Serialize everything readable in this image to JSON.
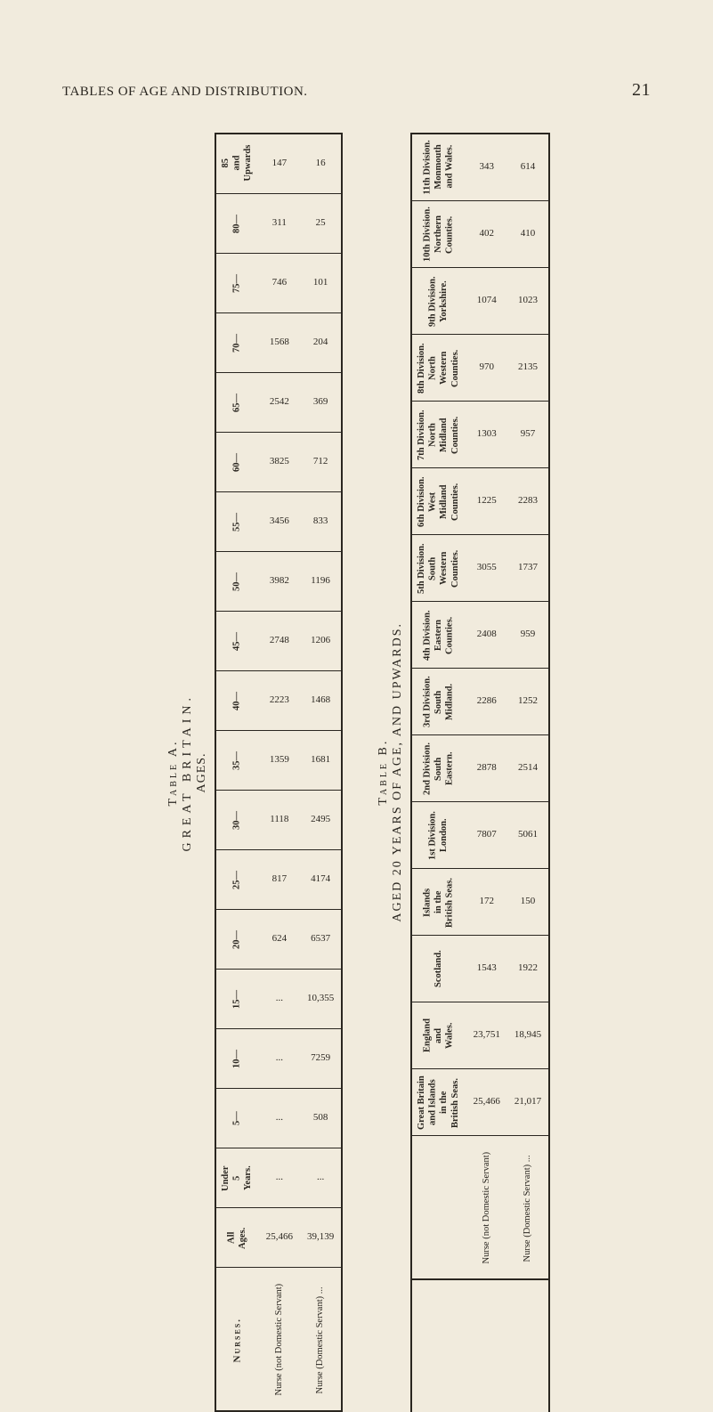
{
  "header": {
    "title": "TABLES OF AGE AND DISTRIBUTION.",
    "page": "21"
  },
  "tableA": {
    "caption": {
      "label": "Table A.",
      "title": "GREAT BRITAIN.",
      "sub": "AGES."
    },
    "stub": "Nurses.",
    "series": [
      "Nurse (not Domestic Servant)",
      "Nurse (Domestic Servant) ..."
    ],
    "rows": [
      {
        "label": "85\nand\nUpwards",
        "vals": [
          "147",
          "16"
        ]
      },
      {
        "label": "80—",
        "vals": [
          "311",
          "25"
        ]
      },
      {
        "label": "75—",
        "vals": [
          "746",
          "101"
        ]
      },
      {
        "label": "70—",
        "vals": [
          "1568",
          "204"
        ]
      },
      {
        "label": "65—",
        "vals": [
          "2542",
          "369"
        ]
      },
      {
        "label": "60—",
        "vals": [
          "3825",
          "712"
        ]
      },
      {
        "label": "55—",
        "vals": [
          "3456",
          "833"
        ]
      },
      {
        "label": "50—",
        "vals": [
          "3982",
          "1196"
        ]
      },
      {
        "label": "45—",
        "vals": [
          "2748",
          "1206"
        ]
      },
      {
        "label": "40—",
        "vals": [
          "2223",
          "1468"
        ]
      },
      {
        "label": "35—",
        "vals": [
          "1359",
          "1681"
        ]
      },
      {
        "label": "30—",
        "vals": [
          "1118",
          "2495"
        ]
      },
      {
        "label": "25—",
        "vals": [
          "817",
          "4174"
        ]
      },
      {
        "label": "20—",
        "vals": [
          "624",
          "6537"
        ]
      },
      {
        "label": "15—",
        "vals": [
          "...",
          "10,355"
        ]
      },
      {
        "label": "10—",
        "vals": [
          "...",
          "7259"
        ]
      },
      {
        "label": "5—",
        "vals": [
          "...",
          "508"
        ]
      },
      {
        "label": "Under\n5\nYears.",
        "vals": [
          "...",
          "..."
        ]
      },
      {
        "label": "All\nAges.",
        "vals": [
          "25,466",
          "39,139"
        ]
      }
    ]
  },
  "tableB": {
    "caption": {
      "label": "Table B.",
      "title": "AGED 20 YEARS OF AGE, AND UPWARDS."
    },
    "stub": "",
    "series": [
      "Nurse (not Domestic Servant)",
      "Nurse (Domestic Servant) ..."
    ],
    "rows": [
      {
        "label": "11th Division.\nMonmouth\nand Wales.",
        "vals": [
          "343",
          "614"
        ]
      },
      {
        "label": "10th Division.\nNorthern\nCounties.",
        "vals": [
          "402",
          "410"
        ]
      },
      {
        "label": "9th Division.\nYorkshire.",
        "vals": [
          "1074",
          "1023"
        ]
      },
      {
        "label": "8th Division.\nNorth\nWestern\nCounties.",
        "vals": [
          "970",
          "2135"
        ]
      },
      {
        "label": "7th Division.\nNorth\nMidland\nCounties.",
        "vals": [
          "1303",
          "957"
        ]
      },
      {
        "label": "6th Division.\nWest\nMidland\nCounties.",
        "vals": [
          "1225",
          "2283"
        ]
      },
      {
        "label": "5th Division.\nSouth\nWestern\nCounties.",
        "vals": [
          "3055",
          "1737"
        ]
      },
      {
        "label": "4th Division.\nEastern\nCounties.",
        "vals": [
          "2408",
          "959"
        ]
      },
      {
        "label": "3rd Division.\nSouth\nMidland.",
        "vals": [
          "2286",
          "1252"
        ]
      },
      {
        "label": "2nd Division.\nSouth\nEastern.",
        "vals": [
          "2878",
          "2514"
        ]
      },
      {
        "label": "1st Division.\nLondon.",
        "vals": [
          "7807",
          "5061"
        ]
      },
      {
        "label": "Islands\nin the\nBritish Seas.",
        "vals": [
          "172",
          "150"
        ]
      },
      {
        "label": "Scotland.",
        "vals": [
          "1543",
          "1922"
        ]
      },
      {
        "label": "England\nand\nWales.",
        "vals": [
          "23,751",
          "18,945"
        ]
      },
      {
        "label": "Great Britain\nand Islands\nin the\nBritish Seas.",
        "vals": [
          "25,466",
          "21,017"
        ]
      }
    ]
  }
}
